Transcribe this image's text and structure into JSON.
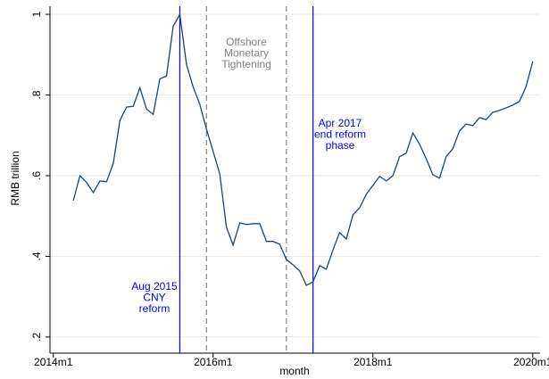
{
  "chart_data": {
    "type": "line",
    "x_label": "month",
    "y_label": "RMB trillion",
    "x": [
      651,
      652,
      653,
      654,
      655,
      656,
      657,
      658,
      659,
      660,
      661,
      662,
      663,
      664,
      665,
      666,
      667,
      668,
      669,
      670,
      671,
      672,
      673,
      674,
      675,
      676,
      677,
      678,
      679,
      680,
      681,
      682,
      683,
      684,
      685,
      686,
      687,
      688,
      689,
      690,
      691,
      692,
      693,
      694,
      695,
      696,
      697,
      698,
      699,
      700,
      701,
      702,
      703,
      704,
      705,
      706,
      707,
      708,
      709,
      710,
      711,
      712,
      713,
      714,
      715,
      716,
      717,
      718,
      719,
      720
    ],
    "series": [
      {
        "color": "#1a476f",
        "values": [
          0.538,
          0.6,
          0.583,
          0.558,
          0.587,
          0.585,
          0.63,
          0.737,
          0.77,
          0.772,
          0.818,
          0.765,
          0.752,
          0.84,
          0.847,
          0.97,
          1.0,
          0.876,
          0.82,
          0.777,
          0.715,
          0.66,
          0.604,
          0.472,
          0.428,
          0.483,
          0.479,
          0.481,
          0.481,
          0.437,
          0.437,
          0.43,
          0.392,
          0.379,
          0.364,
          0.328,
          0.337,
          0.377,
          0.368,
          0.416,
          0.459,
          0.443,
          0.503,
          0.52,
          0.554,
          0.576,
          0.598,
          0.587,
          0.6,
          0.647,
          0.656,
          0.706,
          0.678,
          0.642,
          0.602,
          0.594,
          0.647,
          0.667,
          0.711,
          0.728,
          0.724,
          0.744,
          0.739,
          0.757,
          0.762,
          0.768,
          0.775,
          0.784,
          0.821,
          0.883
        ]
      }
    ],
    "xlim": [
      647.5,
      721.1
    ],
    "xticks": [
      {
        "value": 648,
        "label": "2014m1"
      },
      {
        "value": 672,
        "label": "2016m1"
      },
      {
        "value": 696,
        "label": "2018m1"
      },
      {
        "value": 720,
        "label": "2020m1"
      }
    ],
    "ylim": [
      0.16,
      1.02
    ],
    "yticks": [
      {
        "value": 0.2,
        "label": ".2"
      },
      {
        "value": 0.4,
        "label": ".4"
      },
      {
        "value": 0.6,
        "label": ".6"
      },
      {
        "value": 0.8,
        "label": ".8"
      },
      {
        "value": 1,
        "label": "1"
      }
    ],
    "grid": true,
    "annotations": [
      {
        "x": 667,
        "color": "#0000ff",
        "style": "solid",
        "text": [
          "Aug 2015",
          "CNY",
          "reform"
        ]
      },
      {
        "x": 671,
        "color": "#808080",
        "style": "dashed",
        "text": [
          "Offshore",
          "Monetary",
          "Tightening"
        ]
      },
      {
        "x": 683,
        "color": "#808080",
        "style": "dashed"
      },
      {
        "x": 687,
        "color": "#0000ff",
        "style": "solid",
        "text": [
          "Apr 2017",
          "end reform",
          "phase"
        ]
      }
    ]
  }
}
